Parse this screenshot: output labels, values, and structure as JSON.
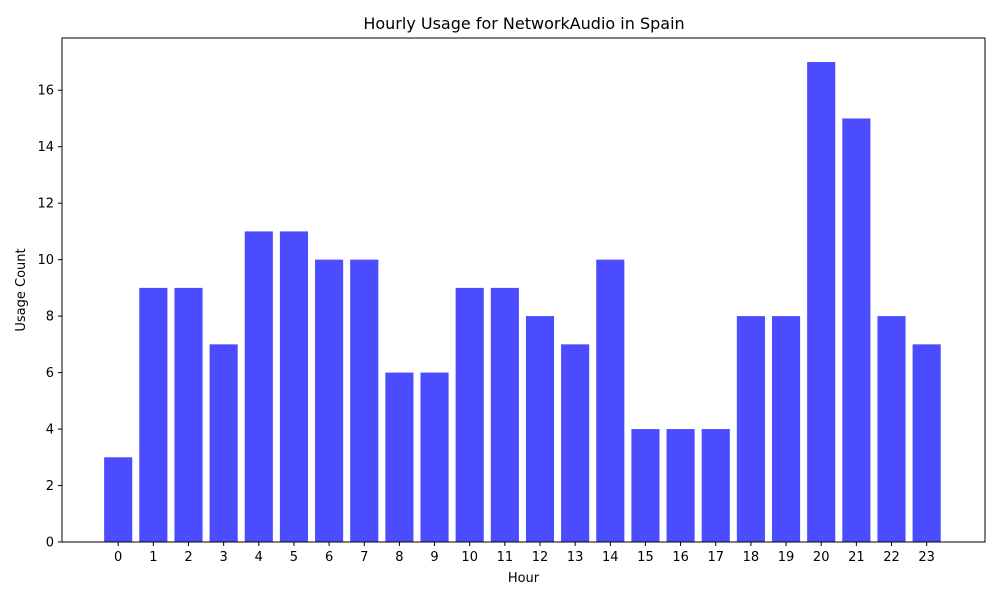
{
  "chart_data": {
    "type": "bar",
    "title": "Hourly Usage for NetworkAudio in Spain",
    "xlabel": "Hour",
    "ylabel": "Usage Count",
    "categories": [
      "0",
      "1",
      "2",
      "3",
      "4",
      "5",
      "6",
      "7",
      "8",
      "9",
      "10",
      "11",
      "12",
      "13",
      "14",
      "15",
      "16",
      "17",
      "18",
      "19",
      "20",
      "21",
      "22",
      "23"
    ],
    "values": [
      3,
      9,
      9,
      7,
      11,
      11,
      10,
      10,
      6,
      6,
      9,
      9,
      8,
      7,
      10,
      4,
      4,
      4,
      8,
      8,
      17,
      15,
      8,
      7
    ],
    "yticks": [
      0,
      2,
      4,
      6,
      8,
      10,
      12,
      14,
      16
    ],
    "ylim": [
      0,
      17.85
    ],
    "bar_color": "#4b4bff",
    "grid": false,
    "legend": "none"
  }
}
